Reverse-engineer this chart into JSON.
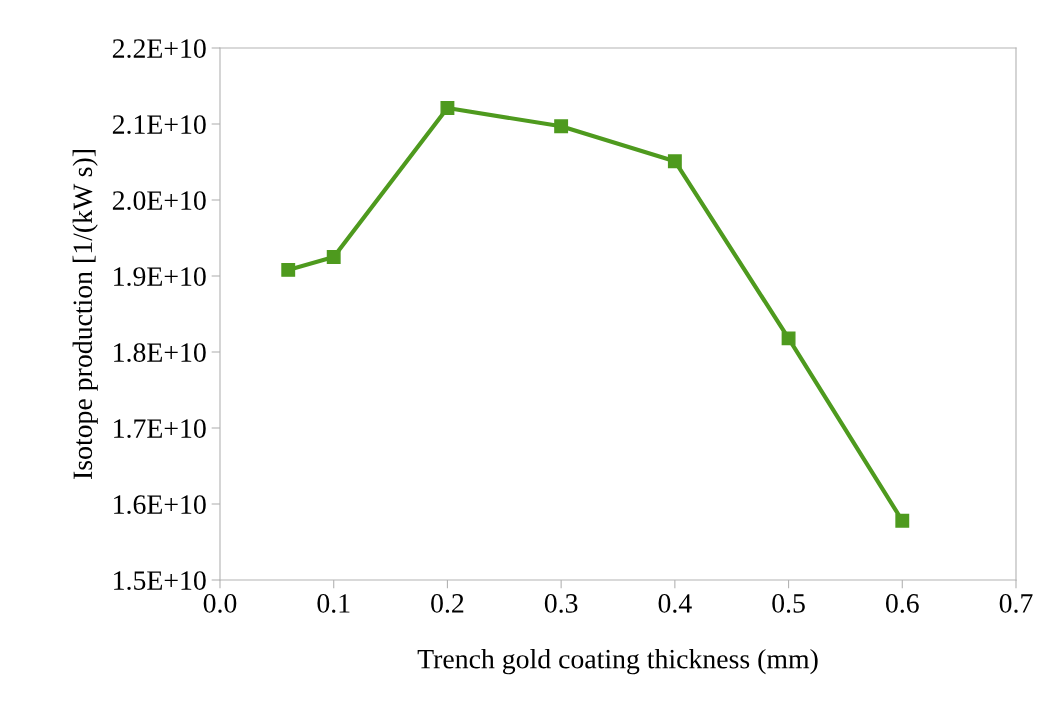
{
  "chart_data": {
    "type": "line",
    "xlabel": "Trench gold coating thickness (mm)",
    "ylabel": "Isotope production [1/(kW s)]",
    "x": [
      0.06,
      0.1,
      0.2,
      0.3,
      0.4,
      0.5,
      0.6
    ],
    "series": [
      {
        "color": "#4e9a1e",
        "values": [
          19080000000.0,
          19250000000.0,
          21210000000.0,
          20970000000.0,
          20510000000.0,
          18180000000.0,
          15780000000.0
        ]
      }
    ],
    "xlim": [
      0.0,
      0.7
    ],
    "xticks": [
      {
        "value": 0.0,
        "label": "0.0"
      },
      {
        "value": 0.1,
        "label": "0.1"
      },
      {
        "value": 0.2,
        "label": "0.2"
      },
      {
        "value": 0.3,
        "label": "0.3"
      },
      {
        "value": 0.4,
        "label": "0.4"
      },
      {
        "value": 0.5,
        "label": "0.5"
      },
      {
        "value": 0.6,
        "label": "0.6"
      },
      {
        "value": 0.7,
        "label": "0.7"
      }
    ],
    "ylim": [
      15000000000.0,
      22000000000.0
    ],
    "yticks": [
      {
        "value": 15000000000.0,
        "label": "1.5E+10"
      },
      {
        "value": 16000000000.0,
        "label": "1.6E+10"
      },
      {
        "value": 17000000000.0,
        "label": "1.7E+10"
      },
      {
        "value": 18000000000.0,
        "label": "1.8E+10"
      },
      {
        "value": 19000000000.0,
        "label": "1.9E+10"
      },
      {
        "value": 20000000000.0,
        "label": "2.0E+10"
      },
      {
        "value": 21000000000.0,
        "label": "2.1E+10"
      },
      {
        "value": 22000000000.0,
        "label": "2.2E+10"
      }
    ],
    "grid": false,
    "legend": false,
    "marker": "square",
    "line_style": "solid"
  }
}
